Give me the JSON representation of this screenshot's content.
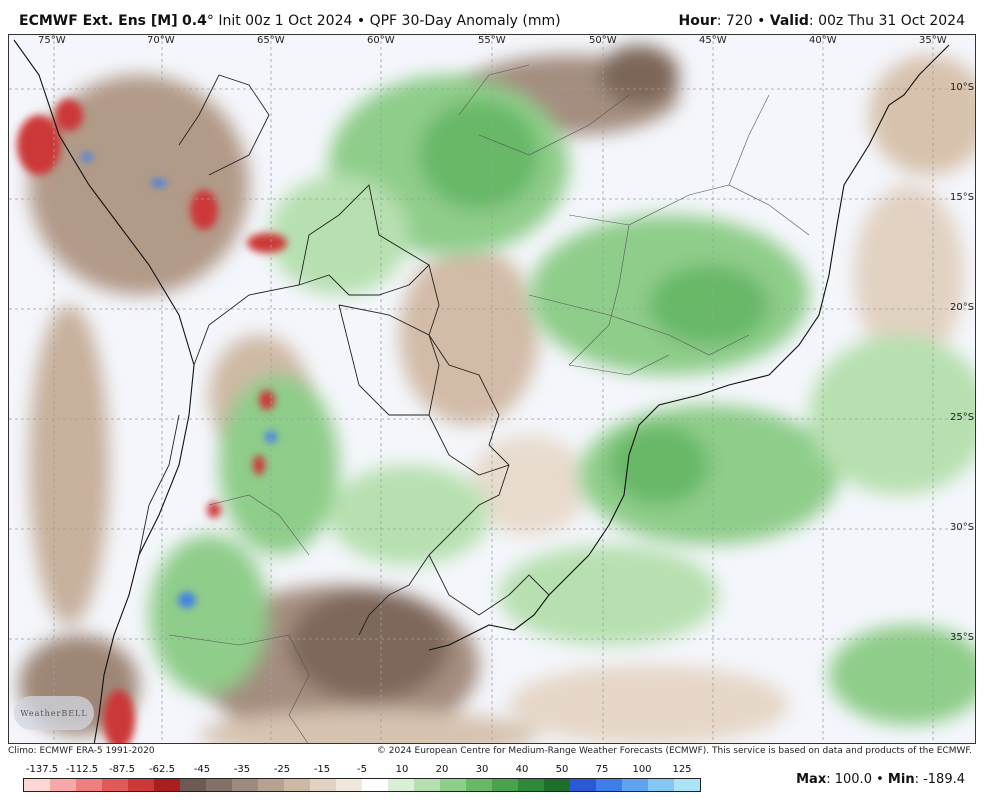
{
  "header": {
    "model": "ECMWF Ext. Ens [M]",
    "resolution": "0.4",
    "resolution_unit": "°",
    "init_text": "Init 00z 1 Oct 2024",
    "separator": "•",
    "product_text": "QPF 30-Day Anomaly (mm)",
    "hour_label": "Hour",
    "hour_value": ": 720",
    "valid_label": "Valid",
    "valid_value": ": 00z Thu 31 Oct 2024"
  },
  "map": {
    "longitude_labels": [
      "75°W",
      "70°W",
      "65°W",
      "60°W",
      "55°W",
      "50°W",
      "45°W",
      "40°W",
      "35°W"
    ],
    "latitude_labels": [
      "10°S",
      "15°S",
      "20°S",
      "25°S",
      "30°S",
      "35°S"
    ],
    "logo_text": "WeatherBELL"
  },
  "footer": {
    "climo_text": "Climo: ECMWF ERA-5 1991-2020",
    "copyright_text": "© 2024 European Centre for Medium-Range Weather Forecasts (ECMWF). This service is based on data and products of the ECMWF."
  },
  "colorbar": {
    "tick_labels": [
      "-137.5",
      "-112.5",
      "-87.5",
      "-62.5",
      "-45",
      "-35",
      "-25",
      "-15",
      "-5",
      "10",
      "20",
      "30",
      "40",
      "50",
      "75",
      "100",
      "125"
    ],
    "colors": [
      "#ffd6d6",
      "#f7a8a8",
      "#ee7f7f",
      "#e05a5a",
      "#cc3737",
      "#a81f1f",
      "#6e5a52",
      "#857067",
      "#9e8a7e",
      "#b7a292",
      "#cdb8a6",
      "#e2d2c2",
      "#f1e7dd",
      "#ffffff",
      "#d9efd6",
      "#b7e0b0",
      "#8fcd8a",
      "#68b867",
      "#4aa24d",
      "#2e8a3a",
      "#1f6f2c",
      "#2a59d6",
      "#3f7ee8",
      "#5ea4f0",
      "#84c6f4",
      "#ade3f7"
    ]
  },
  "stats": {
    "max_label": "Max",
    "max_value": ": 100.0",
    "min_label": "Min",
    "min_value": ": -189.4"
  }
}
